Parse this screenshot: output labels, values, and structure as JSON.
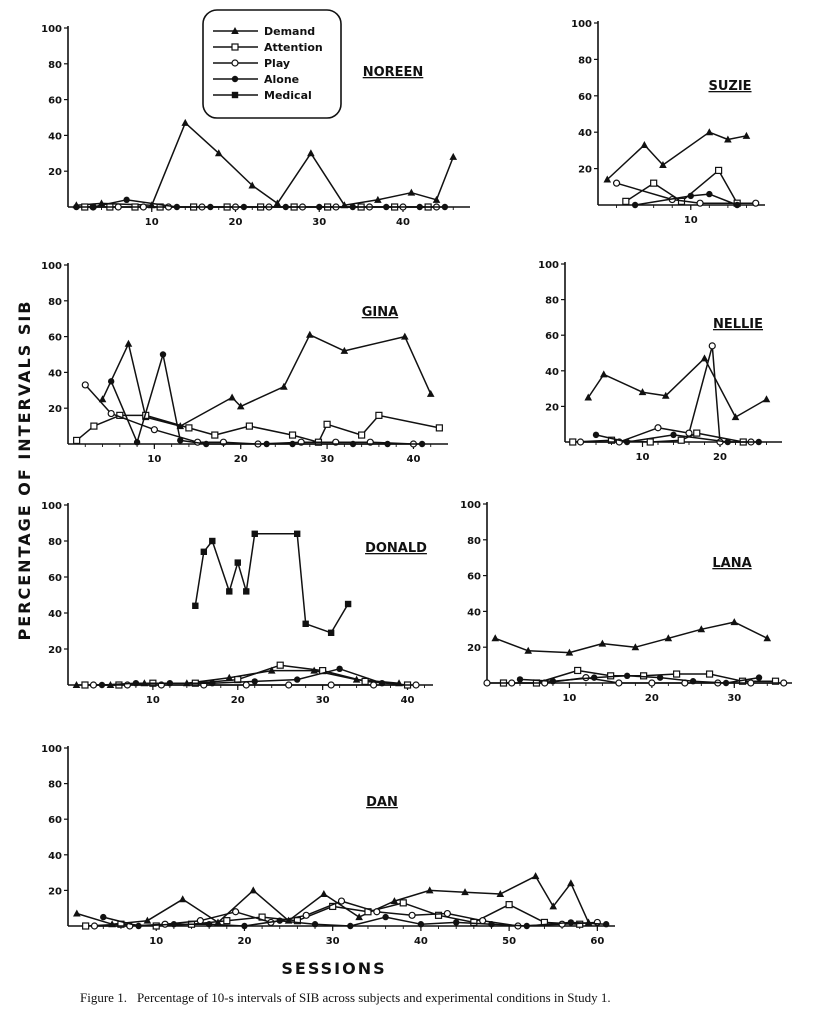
{
  "figure": {
    "y_axis_label": "PERCENTAGE OF INTERVALS SIB",
    "x_axis_label": "SESSIONS",
    "caption_number": "Figure 1.",
    "caption_text": "Percentage of 10-s intervals of SIB across subjects and experimental conditions in Study 1."
  },
  "legend": [
    {
      "name": "Demand",
      "marker": "filled-triangle"
    },
    {
      "name": "Attention",
      "marker": "open-square"
    },
    {
      "name": "Play",
      "marker": "open-circle"
    },
    {
      "name": "Alone",
      "marker": "filled-circle"
    },
    {
      "name": "Medical",
      "marker": "filled-square"
    }
  ],
  "chart_data": [
    {
      "type": "line",
      "title": "NOREEN",
      "xlim": [
        0,
        48
      ],
      "ylim": [
        0,
        100
      ],
      "xticks": [
        10,
        20,
        30,
        40
      ],
      "yticks": [
        20,
        40,
        60,
        80,
        100
      ],
      "series": [
        {
          "name": "Demand",
          "x": [
            1,
            4,
            10,
            14,
            18,
            22,
            25,
            29,
            33,
            37,
            41,
            44,
            46
          ],
          "y": [
            1,
            2,
            1,
            47,
            30,
            12,
            2,
            30,
            1,
            4,
            8,
            4,
            28
          ]
        },
        {
          "name": "Attention",
          "x": [
            2,
            5,
            8,
            11,
            15,
            19,
            23,
            27,
            31,
            35,
            39,
            43
          ],
          "y": [
            0,
            0,
            0,
            0,
            0,
            0,
            0,
            0,
            0,
            0,
            0,
            0
          ]
        },
        {
          "name": "Play",
          "x": [
            3,
            6,
            9,
            12,
            16,
            20,
            24,
            28,
            32,
            36,
            40,
            44
          ],
          "y": [
            0,
            0,
            0,
            0,
            0,
            0,
            0,
            0,
            0,
            0,
            0,
            0
          ]
        },
        {
          "name": "Alone",
          "x": [
            1,
            3,
            7,
            13,
            17,
            21,
            26,
            30,
            34,
            38,
            42,
            45
          ],
          "y": [
            0,
            0,
            4,
            0,
            0,
            0,
            0,
            0,
            0,
            0,
            0,
            0
          ]
        }
      ]
    },
    {
      "type": "line",
      "title": "SUZIE",
      "xlim": [
        0,
        18
      ],
      "ylim": [
        0,
        100
      ],
      "xticks": [
        10
      ],
      "yticks": [
        20,
        40,
        60,
        80,
        100
      ],
      "series": [
        {
          "name": "Demand",
          "x": [
            1,
            5,
            7,
            12,
            14,
            16
          ],
          "y": [
            14,
            33,
            22,
            40,
            36,
            38
          ]
        },
        {
          "name": "Attention",
          "x": [
            3,
            6,
            9,
            13,
            15
          ],
          "y": [
            2,
            12,
            2,
            19,
            1
          ]
        },
        {
          "name": "Play",
          "x": [
            2,
            8,
            11,
            17
          ],
          "y": [
            12,
            3,
            1,
            1
          ]
        },
        {
          "name": "Alone",
          "x": [
            4,
            10,
            12,
            15
          ],
          "y": [
            0,
            5,
            6,
            0
          ]
        }
      ]
    },
    {
      "type": "line",
      "title": "GINA",
      "xlim": [
        0,
        44
      ],
      "ylim": [
        0,
        100
      ],
      "xticks": [
        10,
        20,
        30,
        40
      ],
      "yticks": [
        20,
        40,
        60,
        80,
        100
      ],
      "series": [
        {
          "name": "Demand",
          "x": [
            4,
            7,
            9,
            13,
            19,
            20,
            25,
            28,
            32,
            39,
            42
          ],
          "y": [
            25,
            56,
            15,
            10,
            26,
            21,
            32,
            61,
            52,
            60,
            28
          ]
        },
        {
          "name": "Attention",
          "x": [
            1,
            3,
            6,
            9,
            14,
            17,
            21,
            26,
            29,
            30,
            34,
            36,
            43
          ],
          "y": [
            2,
            10,
            16,
            16,
            9,
            5,
            10,
            5,
            1,
            11,
            5,
            16,
            9
          ]
        },
        {
          "name": "Play",
          "x": [
            2,
            5,
            10,
            15,
            18,
            22,
            27,
            31,
            35,
            40
          ],
          "y": [
            33,
            17,
            8,
            1,
            1,
            0,
            1,
            1,
            1,
            0
          ]
        },
        {
          "name": "Alone",
          "x": [
            5,
            8,
            11,
            13,
            16,
            23,
            26,
            33,
            37,
            41
          ],
          "y": [
            35,
            1,
            50,
            2,
            0,
            0,
            0,
            0,
            0,
            0
          ]
        }
      ]
    },
    {
      "type": "line",
      "title": "NELLIE",
      "xlim": [
        0,
        28
      ],
      "ylim": [
        0,
        100
      ],
      "xticks": [
        10,
        20
      ],
      "yticks": [
        20,
        40,
        60,
        80,
        100
      ],
      "series": [
        {
          "name": "Demand",
          "x": [
            3,
            5,
            10,
            13,
            18,
            22,
            26
          ],
          "y": [
            25,
            38,
            28,
            26,
            47,
            14,
            24
          ]
        },
        {
          "name": "Attention",
          "x": [
            1,
            6,
            11,
            15,
            17,
            23
          ],
          "y": [
            0,
            1,
            0,
            1,
            5,
            0
          ]
        },
        {
          "name": "Play",
          "x": [
            2,
            7,
            12,
            16,
            19,
            20,
            24
          ],
          "y": [
            0,
            0,
            8,
            5,
            54,
            0,
            0
          ]
        },
        {
          "name": "Alone",
          "x": [
            4,
            8,
            14,
            21,
            25
          ],
          "y": [
            4,
            0,
            4,
            0,
            0
          ]
        }
      ]
    },
    {
      "type": "line",
      "title": "DONALD",
      "xlim": [
        0,
        43
      ],
      "ylim": [
        0,
        100
      ],
      "xticks": [
        10,
        20,
        30,
        40
      ],
      "yticks": [
        20,
        40,
        60,
        80,
        100
      ],
      "series": [
        {
          "name": "Medical",
          "x": [
            15,
            16,
            17,
            19,
            20,
            21,
            22,
            27,
            28,
            31,
            33
          ],
          "y": [
            44,
            74,
            80,
            52,
            68,
            52,
            84,
            84,
            34,
            29,
            45
          ]
        },
        {
          "name": "Demand",
          "x": [
            1,
            5,
            9,
            14,
            19,
            24,
            29,
            34,
            39
          ],
          "y": [
            0,
            0,
            1,
            1,
            4,
            8,
            8,
            3,
            1
          ]
        },
        {
          "name": "Attention",
          "x": [
            2,
            6,
            10,
            15,
            20,
            25,
            30,
            35,
            40
          ],
          "y": [
            0,
            0,
            1,
            1,
            3,
            11,
            8,
            2,
            0
          ]
        },
        {
          "name": "Play",
          "x": [
            3,
            7,
            11,
            16,
            21,
            26,
            31,
            36,
            41
          ],
          "y": [
            0,
            0,
            0,
            0,
            0,
            0,
            0,
            0,
            0
          ]
        },
        {
          "name": "Alone",
          "x": [
            4,
            8,
            12,
            17,
            22,
            27,
            32,
            37
          ],
          "y": [
            0,
            1,
            1,
            1,
            2,
            3,
            9,
            1
          ]
        }
      ]
    },
    {
      "type": "line",
      "title": "LANA",
      "xlim": [
        0,
        37
      ],
      "ylim": [
        0,
        100
      ],
      "xticks": [
        10,
        20,
        30
      ],
      "yticks": [
        20,
        40,
        60,
        80,
        100
      ],
      "series": [
        {
          "name": "Demand",
          "x": [
            1,
            5,
            10,
            14,
            18,
            22,
            26,
            30,
            34
          ],
          "y": [
            25,
            18,
            17,
            22,
            20,
            25,
            30,
            34,
            25
          ]
        },
        {
          "name": "Attention",
          "x": [
            2,
            6,
            11,
            15,
            19,
            23,
            27,
            31,
            35
          ],
          "y": [
            0,
            0,
            7,
            4,
            4,
            5,
            5,
            1,
            1
          ]
        },
        {
          "name": "Play",
          "x": [
            0,
            3,
            7,
            12,
            16,
            20,
            24,
            28,
            32,
            36
          ],
          "y": [
            0,
            0,
            0,
            3,
            0,
            0,
            0,
            0,
            0,
            0
          ]
        },
        {
          "name": "Alone",
          "x": [
            4,
            8,
            13,
            17,
            21,
            25,
            29,
            33
          ],
          "y": [
            2,
            1,
            3,
            4,
            3,
            1,
            0,
            3
          ]
        }
      ]
    },
    {
      "type": "line",
      "title": "DAN",
      "xlim": [
        0,
        62
      ],
      "ylim": [
        0,
        100
      ],
      "xticks": [
        10,
        20,
        30,
        40,
        50,
        60
      ],
      "yticks": [
        20,
        40,
        60,
        80,
        100
      ],
      "series": [
        {
          "name": "Demand",
          "x": [
            1,
            5,
            9,
            13,
            17,
            21,
            25,
            29,
            33,
            37,
            41,
            45,
            49,
            53,
            55,
            57,
            59
          ],
          "y": [
            7,
            1,
            3,
            15,
            2,
            20,
            3,
            18,
            5,
            14,
            20,
            19,
            18,
            28,
            11,
            24,
            2
          ]
        },
        {
          "name": "Attention",
          "x": [
            2,
            6,
            10,
            14,
            18,
            22,
            26,
            30,
            34,
            38,
            42,
            46,
            50,
            54,
            58
          ],
          "y": [
            0,
            1,
            0,
            1,
            3,
            5,
            3,
            11,
            8,
            13,
            6,
            2,
            12,
            2,
            1
          ]
        },
        {
          "name": "Play",
          "x": [
            3,
            7,
            11,
            15,
            19,
            23,
            27,
            31,
            35,
            39,
            43,
            47,
            51,
            56,
            60
          ],
          "y": [
            0,
            0,
            1,
            3,
            8,
            2,
            6,
            14,
            8,
            6,
            7,
            3,
            0,
            1,
            2
          ]
        },
        {
          "name": "Alone",
          "x": [
            4,
            8,
            12,
            16,
            20,
            24,
            28,
            32,
            36,
            40,
            44,
            48,
            52,
            57,
            61
          ],
          "y": [
            5,
            0,
            1,
            1,
            0,
            3,
            1,
            0,
            5,
            1,
            2,
            1,
            0,
            2,
            1
          ]
        }
      ]
    }
  ]
}
